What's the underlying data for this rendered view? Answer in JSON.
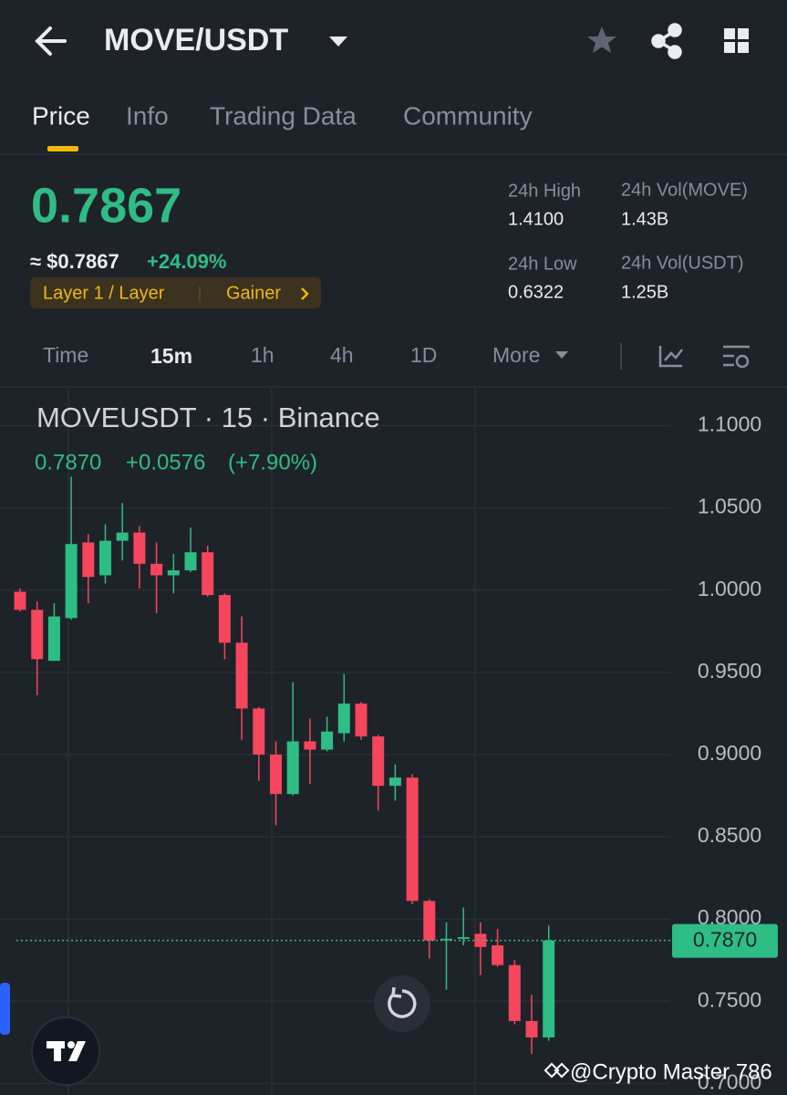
{
  "header": {
    "title": "MOVE/USDT"
  },
  "tabs": [
    "Price",
    "Info",
    "Trading Data",
    "Community"
  ],
  "summary": {
    "price": "0.7867",
    "fiat_price": "≈ $0.7867",
    "change": "+24.09%",
    "tags": [
      "Layer 1 / Layer",
      "Gainer"
    ]
  },
  "stats": [
    {
      "label": "24h High",
      "value": "1.4100"
    },
    {
      "label": "24h Vol(MOVE)",
      "value": "1.43B"
    },
    {
      "label": "24h Low",
      "value": "0.6322"
    },
    {
      "label": "24h Vol(USDT)",
      "value": "1.25B"
    }
  ],
  "intervals": [
    "Time",
    "15m",
    "1h",
    "4h",
    "1D",
    "More"
  ],
  "watermark": "@Crypto Master 786",
  "chart_data": {
    "type": "candlestick",
    "title": "MOVEUSDT · 15 · Binance",
    "legend": [
      "0.7870",
      "+0.0576",
      "(+7.90%)"
    ],
    "up_color": "#2ebd85",
    "down_color": "#f6465d",
    "open": [
      0.999,
      0.988,
      0.957,
      0.983,
      1.029,
      1.009,
      1.03,
      1.035,
      1.016,
      1.009,
      1.012,
      1.023,
      0.997,
      0.968,
      0.928,
      0.9,
      0.876,
      0.908,
      0.903,
      0.913,
      0.931,
      0.911,
      0.881,
      0.886,
      0.811,
      0.787,
      0.788,
      0.791,
      0.784,
      0.772,
      0.738,
      0.728
    ],
    "high": [
      1.001,
      0.993,
      0.992,
      1.069,
      1.034,
      1.04,
      1.053,
      1.039,
      1.029,
      1.022,
      1.038,
      1.027,
      0.998,
      0.984,
      0.929,
      0.908,
      0.944,
      0.922,
      0.923,
      0.949,
      0.932,
      0.912,
      0.894,
      0.888,
      0.812,
      0.798,
      0.807,
      0.798,
      0.794,
      0.775,
      0.754,
      0.796
    ],
    "low": [
      0.987,
      0.936,
      0.957,
      0.982,
      0.992,
      1.004,
      1.018,
      1.001,
      0.986,
      0.998,
      1.011,
      0.996,
      0.958,
      0.909,
      0.884,
      0.857,
      0.875,
      0.882,
      0.902,
      0.908,
      0.909,
      0.866,
      0.872,
      0.809,
      0.776,
      0.757,
      0.784,
      0.766,
      0.771,
      0.736,
      0.718,
      0.726
    ],
    "close": [
      0.988,
      0.958,
      0.984,
      1.028,
      1.008,
      1.03,
      1.035,
      1.016,
      1.009,
      1.012,
      1.023,
      0.997,
      0.968,
      0.928,
      0.9,
      0.876,
      0.908,
      0.903,
      0.914,
      0.931,
      0.911,
      0.881,
      0.886,
      0.811,
      0.787,
      0.788,
      0.789,
      0.783,
      0.772,
      0.738,
      0.728,
      0.787
    ],
    "ylim": [
      0.693,
      1.123
    ],
    "yticks": [
      {
        "value": 1.1,
        "label": "1.1000"
      },
      {
        "value": 1.05,
        "label": "1.0500"
      },
      {
        "value": 1.0,
        "label": "1.0000"
      },
      {
        "value": 0.95,
        "label": "0.9500"
      },
      {
        "value": 0.9,
        "label": "0.9000"
      },
      {
        "value": 0.85,
        "label": "0.8500"
      },
      {
        "value": 0.8,
        "label": "0.8000"
      },
      {
        "value": 0.75,
        "label": "0.7500"
      },
      {
        "value": 0.7,
        "label": "0.7000"
      }
    ],
    "current_price": {
      "value": 0.787,
      "label": "0.7870"
    },
    "grid": true
  }
}
